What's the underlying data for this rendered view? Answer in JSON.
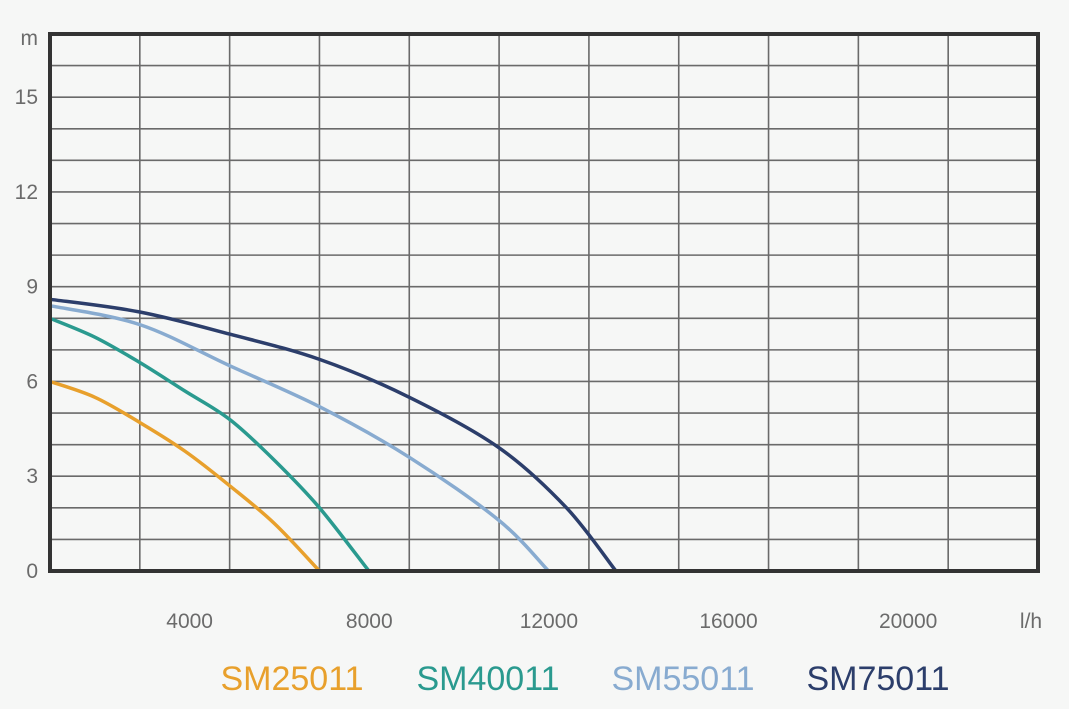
{
  "chart_data": {
    "type": "line",
    "xlabel": "l/h",
    "ylabel": "m",
    "xlim": [
      0,
      22000
    ],
    "ylim": [
      0,
      17
    ],
    "x_ticks": [
      4000,
      8000,
      12000,
      16000,
      20000
    ],
    "x_tick_labels": [
      "4000",
      "8000",
      "12000",
      "16000",
      "20000"
    ],
    "y_ticks": [
      0,
      3,
      6,
      9,
      12,
      15
    ],
    "y_tick_labels": [
      "0",
      "3",
      "6",
      "9",
      "12",
      "15"
    ],
    "grid": true,
    "legend_position": "bottom",
    "series": [
      {
        "name": "SM25011",
        "color": "#e8a02c",
        "points": [
          [
            0,
            6.0
          ],
          [
            1000,
            5.5
          ],
          [
            2000,
            4.7
          ],
          [
            3000,
            3.8
          ],
          [
            4000,
            2.7
          ],
          [
            5000,
            1.5
          ],
          [
            6000,
            0
          ]
        ]
      },
      {
        "name": "SM40011",
        "color": "#2a9a8f",
        "points": [
          [
            0,
            8.0
          ],
          [
            1000,
            7.4
          ],
          [
            2000,
            6.6
          ],
          [
            3000,
            5.7
          ],
          [
            4000,
            4.8
          ],
          [
            5000,
            3.5
          ],
          [
            6000,
            2.0
          ],
          [
            7100,
            0
          ]
        ]
      },
      {
        "name": "SM55011",
        "color": "#88abd0",
        "points": [
          [
            0,
            8.4
          ],
          [
            2000,
            7.8
          ],
          [
            4000,
            6.5
          ],
          [
            6000,
            5.2
          ],
          [
            8000,
            3.6
          ],
          [
            10000,
            1.6
          ],
          [
            11100,
            0
          ]
        ]
      },
      {
        "name": "SM75011",
        "color": "#2c3e6b",
        "points": [
          [
            0,
            8.6
          ],
          [
            2000,
            8.2
          ],
          [
            4000,
            7.5
          ],
          [
            6000,
            6.7
          ],
          [
            8000,
            5.5
          ],
          [
            10000,
            3.9
          ],
          [
            11500,
            2.0
          ],
          [
            12600,
            0
          ]
        ]
      }
    ]
  }
}
